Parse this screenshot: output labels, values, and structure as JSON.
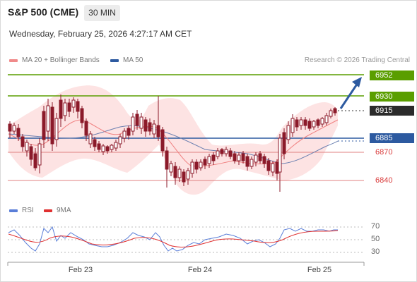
{
  "header": {
    "title": "S&P 500 (CME)",
    "timeframe_button": "30 MIN"
  },
  "timestamp": "Wednesday, February 25, 2026 4:27:17 AM CET",
  "legend": {
    "ma20": "MA 20 + Bollinger Bands",
    "ma50": "MA 50",
    "credit": "Research © 2026 Trading Central"
  },
  "colors": {
    "green": "#5a9e00",
    "red": "#d93b3b",
    "blue": "#2d5aa0",
    "candle": "#9c1a2a",
    "band": "#fcd6d6",
    "ma20": "#f08080",
    "ma50": "#5a6ea0"
  },
  "levels": {
    "r2": "6952",
    "r1": "6930",
    "last": "6915",
    "pivot": "6885",
    "s1": "6870",
    "s2": "6840"
  },
  "rsi": {
    "legend_rsi": "RSI",
    "legend_9ma": "9MA",
    "ticks": [
      "70",
      "50",
      "30"
    ]
  },
  "x_axis": [
    "Feb 23",
    "Feb 24",
    "Feb 25"
  ]
}
